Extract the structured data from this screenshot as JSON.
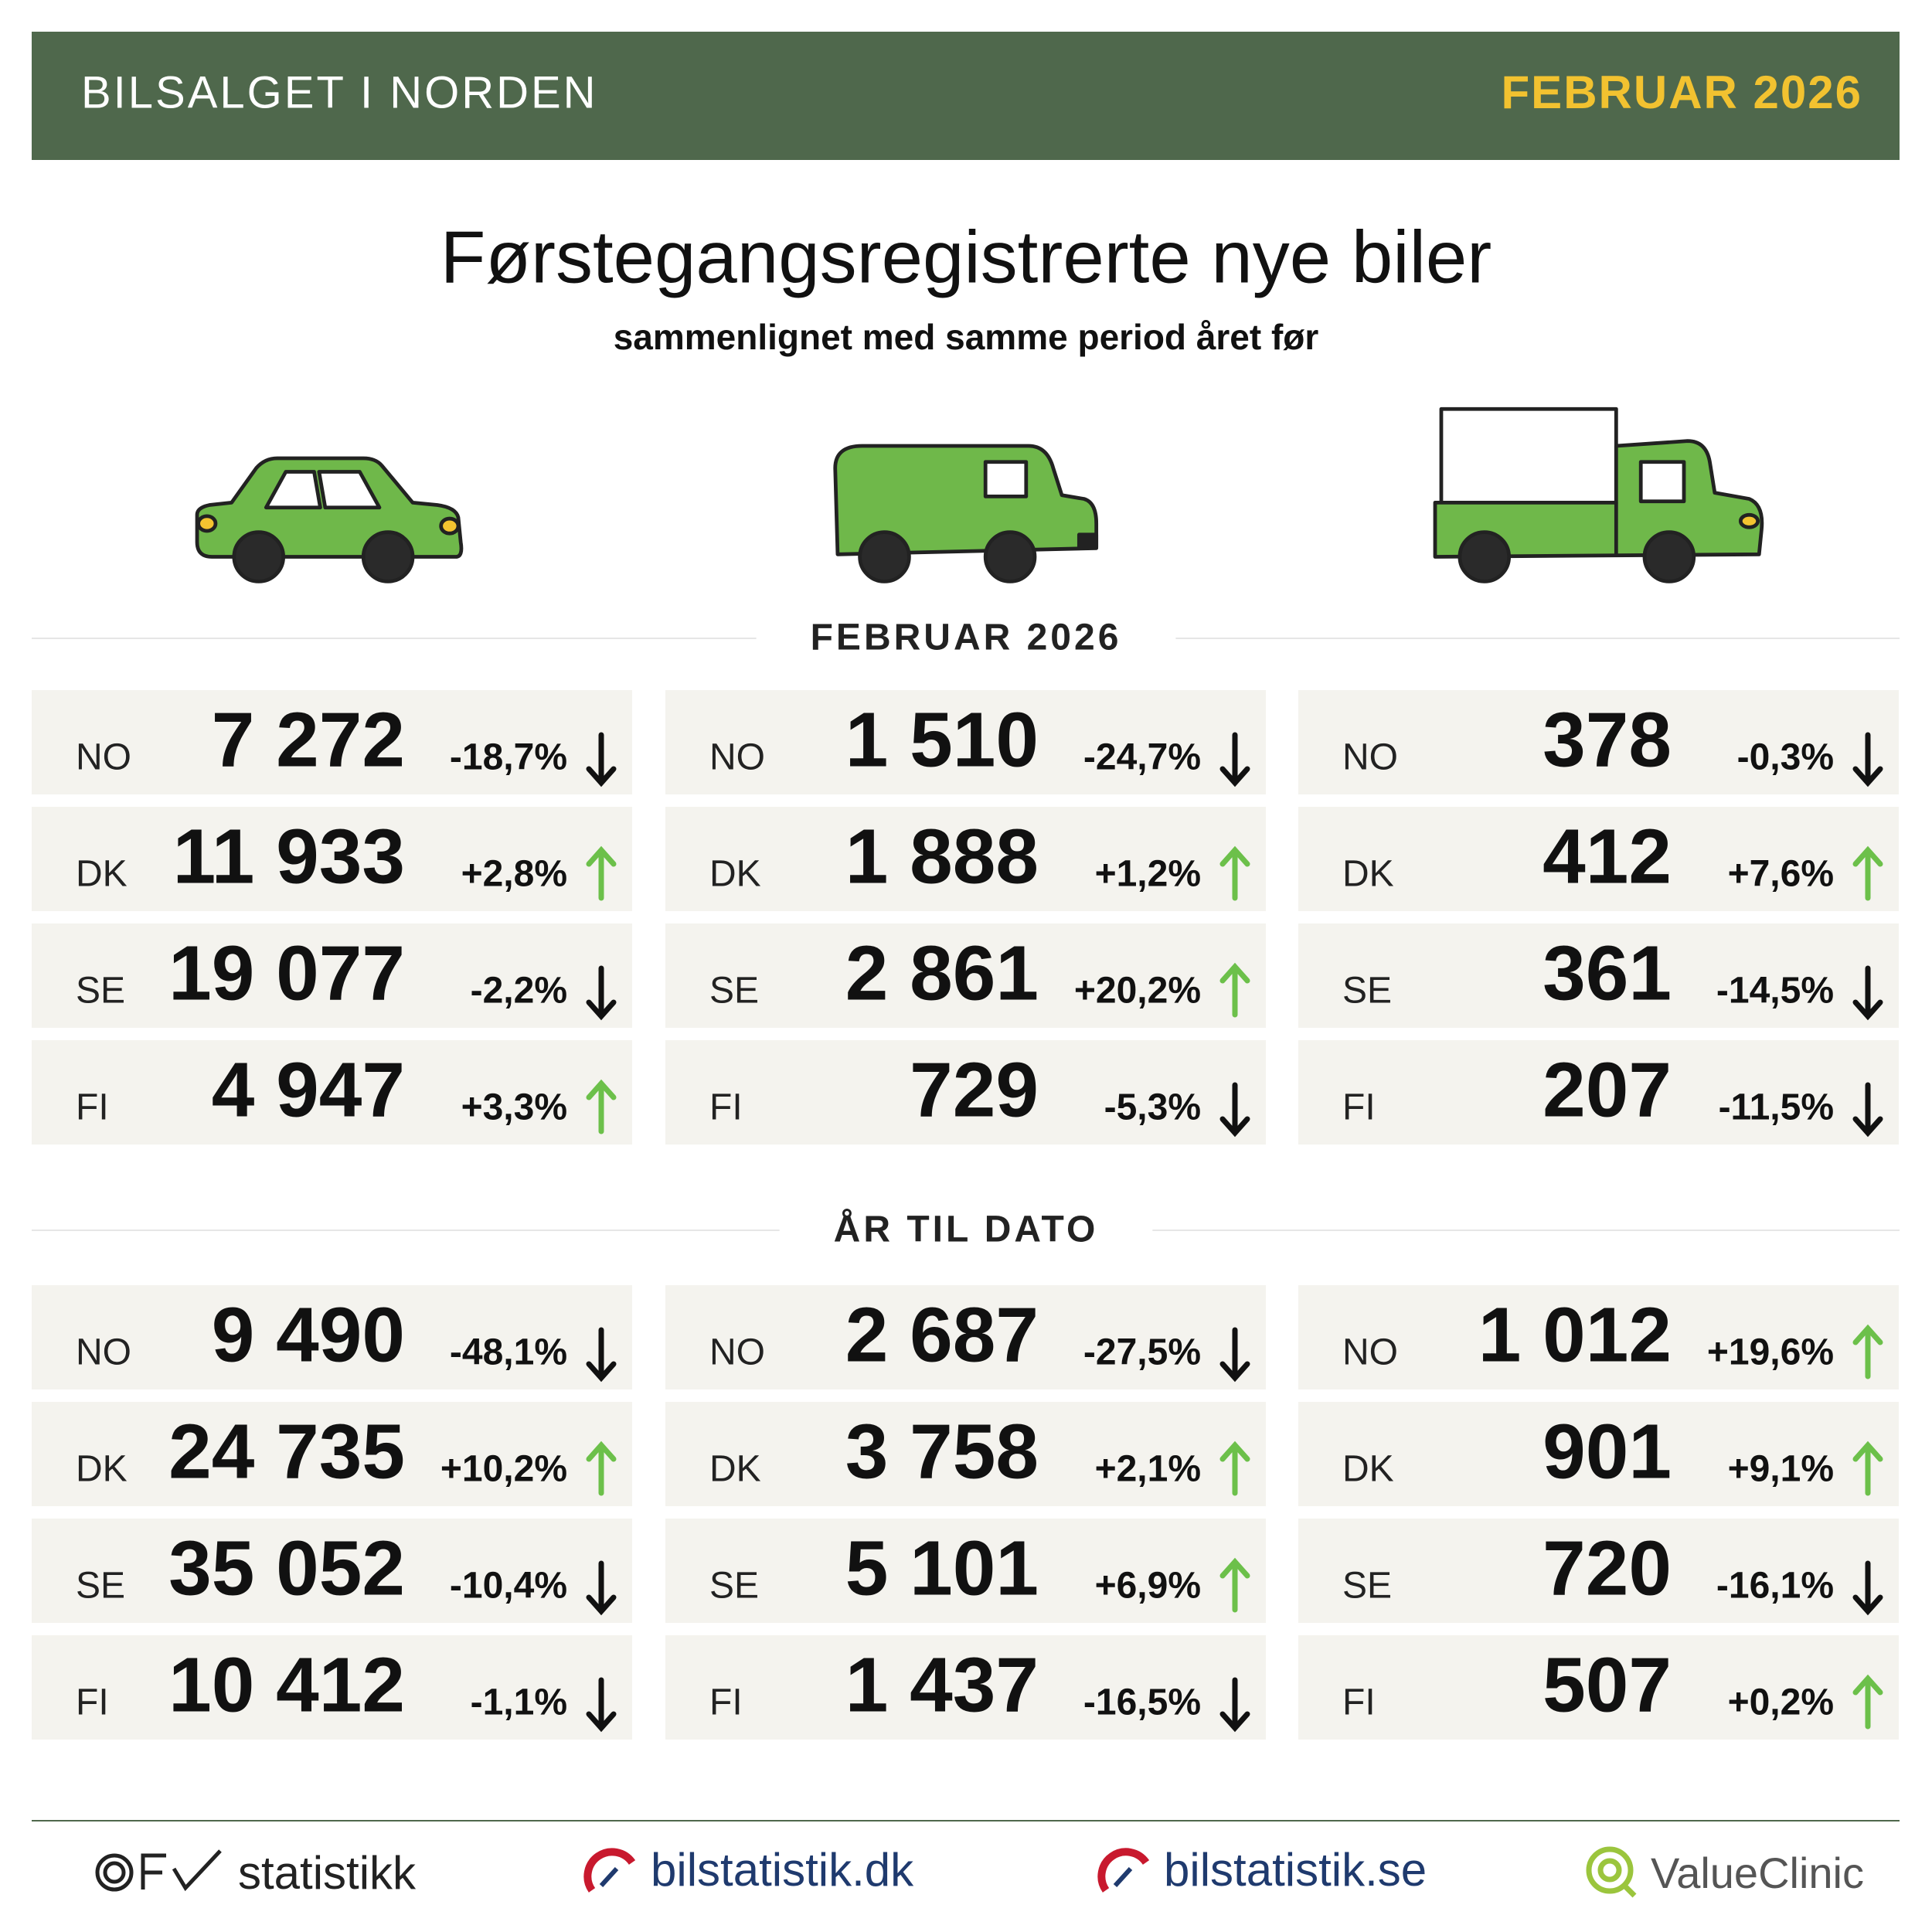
{
  "header": {
    "title": "BILSALGET I NORDEN",
    "period": "FEBRUAR 2026"
  },
  "title": "Førstegangsregistrerte nye biler",
  "subtitle": "sammenlignet med samme period året før",
  "sections": [
    {
      "label": "FEBRUAR 2026",
      "columns": [
        [
          {
            "country": "NO",
            "value": "7 272",
            "change": "-18,7%"
          },
          {
            "country": "DK",
            "value": "11 933",
            "change": "+2,8%"
          },
          {
            "country": "SE",
            "value": "19 077",
            "change": "-2,2%"
          },
          {
            "country": "FI",
            "value": "4 947",
            "change": "+3,3%"
          }
        ],
        [
          {
            "country": "NO",
            "value": "1 510",
            "change": "-24,7%"
          },
          {
            "country": "DK",
            "value": "1 888",
            "change": "+1,2%"
          },
          {
            "country": "SE",
            "value": "2 861",
            "change": "+20,2%"
          },
          {
            "country": "FI",
            "value": "729",
            "change": "-5,3%"
          }
        ],
        [
          {
            "country": "NO",
            "value": "378",
            "change": "-0,3%"
          },
          {
            "country": "DK",
            "value": "412",
            "change": "+7,6%"
          },
          {
            "country": "SE",
            "value": "361",
            "change": "-14,5%"
          },
          {
            "country": "FI",
            "value": "207",
            "change": "-11,5%"
          }
        ]
      ]
    },
    {
      "label": "ÅR TIL DATO",
      "columns": [
        [
          {
            "country": "NO",
            "value": "9 490",
            "change": "-48,1%"
          },
          {
            "country": "DK",
            "value": "24 735",
            "change": "+10,2%"
          },
          {
            "country": "SE",
            "value": "35 052",
            "change": "-10,4%"
          },
          {
            "country": "FI",
            "value": "10 412",
            "change": "-1,1%"
          }
        ],
        [
          {
            "country": "NO",
            "value": "2 687",
            "change": "-27,5%"
          },
          {
            "country": "DK",
            "value": "3 758",
            "change": "+2,1%"
          },
          {
            "country": "SE",
            "value": "5 101",
            "change": "+6,9%"
          },
          {
            "country": "FI",
            "value": "1 437",
            "change": "-16,5%"
          }
        ],
        [
          {
            "country": "NO",
            "value": "1 012",
            "change": "+19,6%"
          },
          {
            "country": "DK",
            "value": "901",
            "change": "+9,1%"
          },
          {
            "country": "SE",
            "value": "720",
            "change": "-16,1%"
          },
          {
            "country": "FI",
            "value": "507",
            "change": "+0,2%"
          }
        ]
      ]
    }
  ],
  "footer": [
    "statistikk",
    "bilstatistik.dk",
    "bilstatistik.se",
    "ValueClinic"
  ]
}
